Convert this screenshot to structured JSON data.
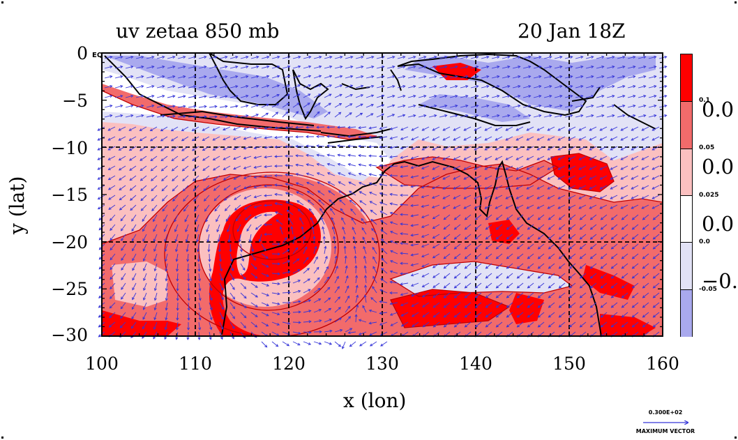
{
  "header": {
    "left_title": "uv zetaa 850 mb",
    "right_title": "20 Jan 18Z"
  },
  "axes": {
    "xlabel": "x (lon)",
    "ylabel": "y (lat)",
    "x_ticks": [
      "100",
      "110",
      "120",
      "130",
      "140",
      "150",
      "160"
    ],
    "y_ticks": [
      "0",
      "−5",
      "−10",
      "−15",
      "−20",
      "−25",
      "−30"
    ],
    "corner_label": "EQ"
  },
  "colorbar": {
    "colors": [
      "#ff0000",
      "#f26b6b",
      "#fbc0c0",
      "#ffffff",
      "#e2e2f6",
      "#a9a9ee"
    ],
    "small_labels": [
      "0.1",
      "0.05",
      "0.025",
      "0.0",
      "-0.05"
    ],
    "big_labels": [
      "0.0",
      "0.0",
      "0.0",
      "−0."
    ]
  },
  "vector_key": {
    "value": "0.300E+02",
    "label": "MAXIMUM VECTOR",
    "color": "#3434d8"
  },
  "map": {
    "lon_range": [
      100,
      160
    ],
    "lat_range": [
      -30,
      0
    ],
    "gridlines_dashed": true,
    "field_colors": {
      "strong_positive": "#ff0000",
      "positive": "#f26b6b",
      "weak_positive": "#fbc0c0",
      "neutral": "#ffffff",
      "weak_negative": "#e2e2f6",
      "negative": "#a9a9ee",
      "contour": "#c00000",
      "vectors": "#3434d8",
      "coast": "#000000"
    }
  }
}
